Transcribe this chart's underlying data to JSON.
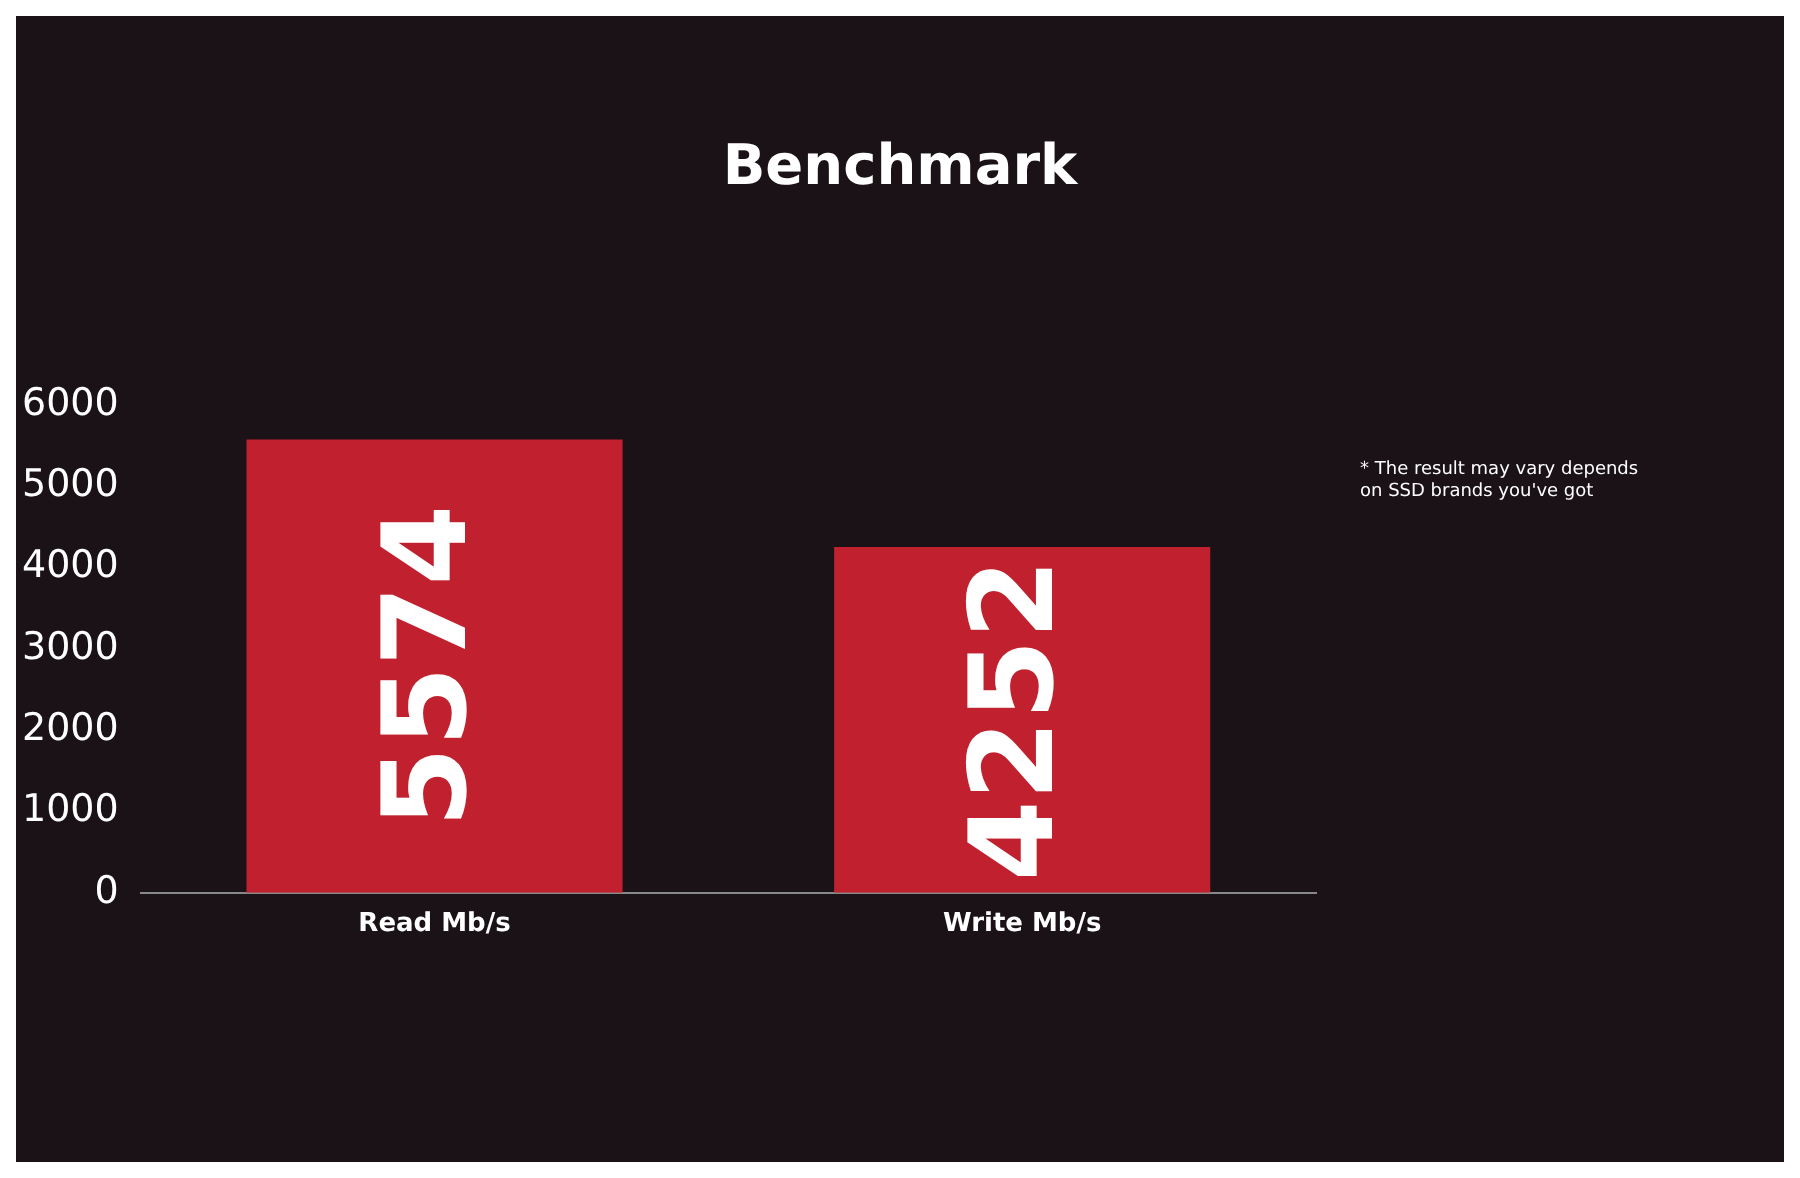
{
  "chart_data": {
    "type": "bar",
    "title": "Benchmark",
    "categories": [
      "Read Mb/s",
      "Write Mb/s"
    ],
    "series": [
      {
        "color": "#c1202e",
        "values": [
          5574,
          4252
        ]
      }
    ],
    "ylim": [
      0,
      6000
    ],
    "yticks": [
      0,
      1000,
      2000,
      3000,
      4000,
      5000,
      6000
    ],
    "grid": false,
    "legend": false,
    "data_labels": true,
    "annotations": [
      "* The result may vary depends on SSD brands you've got"
    ]
  }
}
